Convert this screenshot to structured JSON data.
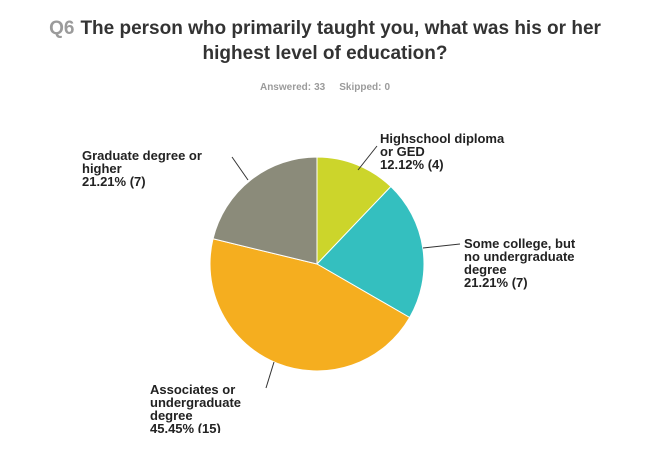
{
  "question": {
    "number": "Q6",
    "title_lines": [
      "The person who primarily taught you, what was his or her",
      "highest level of education?"
    ]
  },
  "stats": {
    "answered_label": "Answered:",
    "answered_value": "33",
    "skipped_label": "Skipped:",
    "skipped_value": "0"
  },
  "chart_data": {
    "type": "pie",
    "slices": [
      {
        "label_lines": [
          "Highschool diploma",
          "or GED"
        ],
        "percent_text": "12.12% (4)",
        "percent": 12.12,
        "count": 4,
        "color": "#ccd52b"
      },
      {
        "label_lines": [
          "Some college, but",
          "no undergraduate",
          "degree"
        ],
        "percent_text": "21.21% (7)",
        "percent": 21.21,
        "count": 7,
        "color": "#34bfbf"
      },
      {
        "label_lines": [
          "Associates or",
          "undergraduate",
          "degree"
        ],
        "percent_text": "45.45% (15)",
        "percent": 45.45,
        "count": 15,
        "color": "#f5ae1f"
      },
      {
        "label_lines": [
          "Graduate degree or",
          "higher"
        ],
        "percent_text": "21.21% (7)",
        "percent": 21.21,
        "count": 7,
        "color": "#8b8b7a"
      }
    ]
  }
}
